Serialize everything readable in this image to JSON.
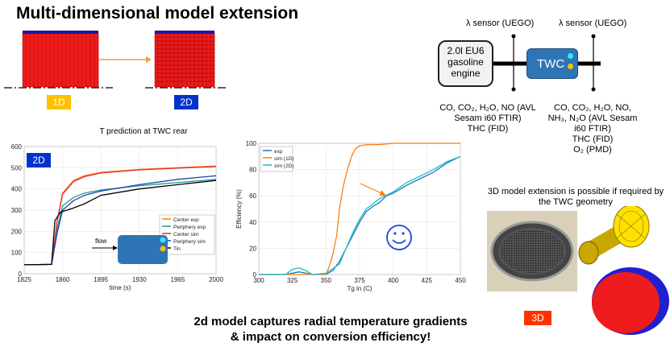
{
  "page": {
    "title": "Multi-dimensional model extension"
  },
  "tags": {
    "one_d": "1D",
    "two_d": "2D",
    "three_d": "3D",
    "chart_2d": "2D"
  },
  "schematic": {
    "sensor_left": "λ sensor (UEGO)",
    "sensor_right": "λ sensor (UEGO)",
    "engine_lines": [
      "2.0l EU6",
      "gasoline",
      "engine"
    ],
    "twc_label": "TWC",
    "left_species": [
      "CO, CO₂, H₂O, NO (AVL",
      "Sesam i60 FTIR)",
      "THC (FID)"
    ],
    "right_species": [
      "CO, CO₂, H₂O, NO,",
      "NH₃, N₂O (AVL Sesam",
      "i60 FTIR)",
      "THC (FID)",
      "O₂ (PMD)"
    ]
  },
  "model3d": {
    "note_lines": [
      "3D model extension is possible if required by",
      "the TWC geometry"
    ]
  },
  "bottom": {
    "lines": [
      "2d model captures radial temperature gradients",
      "& impact on conversion efficiency!"
    ]
  },
  "chart_data": [
    {
      "type": "line",
      "title": "T prediction at TWC rear",
      "xlabel": "time (s)",
      "ylabel": "",
      "xlim": [
        1825,
        2000
      ],
      "ylim": [
        0,
        600
      ],
      "x_ticks": [
        "1825",
        "1860",
        "1895",
        "1930",
        "1965",
        "2000"
      ],
      "y_ticks": [
        "0",
        "100",
        "200",
        "300",
        "400",
        "500",
        "600"
      ],
      "flow_label": "flow",
      "legend_position": "lower-right",
      "series": [
        {
          "name": "Center exp",
          "color": "#ff7f0e",
          "x": [
            1825,
            1850,
            1855,
            1860,
            1870,
            1880,
            1895,
            1930,
            1965,
            2000
          ],
          "y": [
            42,
            44,
            250,
            380,
            440,
            463,
            478,
            492,
            500,
            508
          ]
        },
        {
          "name": "Periphery exp",
          "color": "#1f9e89",
          "x": [
            1825,
            1850,
            1855,
            1860,
            1870,
            1880,
            1895,
            1930,
            1965,
            2000
          ],
          "y": [
            42,
            44,
            210,
            320,
            360,
            380,
            395,
            415,
            430,
            445
          ]
        },
        {
          "name": "Center sim",
          "color": "#e03030",
          "x": [
            1825,
            1850,
            1855,
            1860,
            1870,
            1880,
            1895,
            1930,
            1965,
            2000
          ],
          "y": [
            42,
            44,
            245,
            375,
            435,
            458,
            475,
            490,
            498,
            505
          ]
        },
        {
          "name": "Periphery sim",
          "color": "#1f3fbf",
          "x": [
            1825,
            1850,
            1855,
            1860,
            1870,
            1880,
            1895,
            1930,
            1965,
            2000
          ],
          "y": [
            42,
            44,
            190,
            300,
            345,
            370,
            390,
            420,
            445,
            462
          ]
        },
        {
          "name": "Tin",
          "color": "#000000",
          "x": [
            1825,
            1850,
            1853,
            1858,
            1870,
            1880,
            1895,
            1930,
            1965,
            2000
          ],
          "y": [
            42,
            44,
            250,
            290,
            310,
            330,
            370,
            400,
            420,
            440
          ]
        }
      ]
    },
    {
      "type": "line",
      "xlabel": "Tg in (C)",
      "ylabel": "Efficiency (%)",
      "xlim": [
        300,
        450
      ],
      "ylim": [
        0,
        100
      ],
      "x_ticks": [
        "300",
        "325",
        "350",
        "375",
        "400",
        "425",
        "450"
      ],
      "y_ticks": [
        "0",
        "20",
        "40",
        "60",
        "80",
        "100"
      ],
      "legend_position": "top-left",
      "series": [
        {
          "name": "exp",
          "color": "#1f77b4",
          "x": [
            300,
            320,
            330,
            340,
            350,
            355,
            360,
            365,
            370,
            375,
            380,
            385,
            390,
            395,
            400,
            410,
            420,
            430,
            440,
            450
          ],
          "y": [
            0,
            0,
            2,
            0,
            0,
            3,
            10,
            20,
            30,
            40,
            48,
            52,
            55,
            60,
            62,
            68,
            73,
            78,
            85,
            90
          ]
        },
        {
          "name": "sim (1D)",
          "color": "#ff7f0e",
          "x": [
            300,
            350,
            352,
            355,
            358,
            360,
            363,
            366,
            369,
            372,
            375,
            380,
            390,
            400,
            420,
            450
          ],
          "y": [
            0,
            0,
            5,
            15,
            30,
            50,
            68,
            80,
            90,
            96,
            98,
            99,
            99,
            100,
            100,
            100
          ]
        },
        {
          "name": "sim (2D)",
          "color": "#17becf",
          "x": [
            300,
            320,
            325,
            330,
            335,
            340,
            350,
            360,
            365,
            370,
            375,
            380,
            390,
            400,
            410,
            420,
            430,
            440,
            450
          ],
          "y": [
            0,
            0,
            4,
            5,
            3,
            0,
            1,
            8,
            20,
            32,
            42,
            50,
            58,
            63,
            70,
            75,
            80,
            86,
            90
          ]
        }
      ]
    }
  ]
}
